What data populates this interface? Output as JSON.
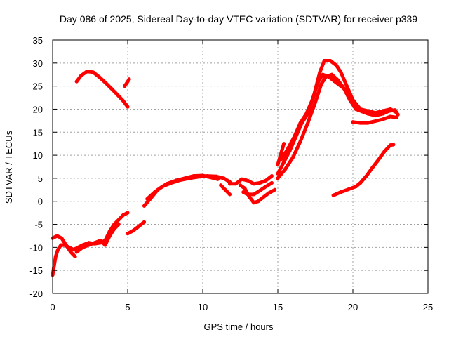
{
  "chart_data": {
    "type": "scatter",
    "title": "Day 086 of 2025, Sidereal Day-to-day VTEC variation (SDTVAR) for receiver p339",
    "xlabel": "GPS time / hours",
    "ylabel": "SDTVAR / TECUs",
    "xlim": [
      0,
      25
    ],
    "ylim": [
      -20,
      35
    ],
    "xticks": [
      "0",
      "5",
      "10",
      "15",
      "20",
      "25"
    ],
    "yticks": [
      "-20",
      "-15",
      "-10",
      "-5",
      "0",
      "5",
      "10",
      "15",
      "20",
      "25",
      "30",
      "35"
    ],
    "grid": true,
    "marker_color": "#ff0000",
    "series": [
      {
        "name": "track-1",
        "points": [
          [
            0.0,
            -16
          ],
          [
            0.1,
            -14
          ],
          [
            0.2,
            -12
          ],
          [
            0.35,
            -10.5
          ],
          [
            0.55,
            -9.5
          ],
          [
            0.8,
            -9.5
          ],
          [
            1.1,
            -10
          ],
          [
            1.4,
            -10.5
          ],
          [
            1.7,
            -10
          ],
          [
            2.0,
            -9.5
          ],
          [
            2.4,
            -9
          ],
          [
            2.8,
            -9.2
          ],
          [
            3.2,
            -9
          ],
          [
            3.5,
            -8.5
          ],
          [
            3.8,
            -6.5
          ],
          [
            4.1,
            -5
          ],
          [
            4.4,
            -4
          ],
          [
            4.7,
            -3
          ],
          [
            5.0,
            -2.5
          ]
        ]
      },
      {
        "name": "track-2",
        "points": [
          [
            0.0,
            -8
          ],
          [
            0.3,
            -7.5
          ],
          [
            0.6,
            -8
          ],
          [
            0.9,
            -9.5
          ],
          [
            1.2,
            -11
          ],
          [
            1.5,
            -12
          ]
        ]
      },
      {
        "name": "track-3",
        "points": [
          [
            1.6,
            -11
          ],
          [
            2.0,
            -10
          ],
          [
            2.4,
            -9.5
          ],
          [
            2.8,
            -9
          ],
          [
            3.2,
            -8.5
          ],
          [
            3.5,
            -9.5
          ],
          [
            3.8,
            -7.5
          ],
          [
            4.1,
            -6
          ],
          [
            4.4,
            -5
          ]
        ]
      },
      {
        "name": "track-4",
        "points": [
          [
            1.6,
            26
          ],
          [
            1.9,
            27.3
          ],
          [
            2.3,
            28.2
          ],
          [
            2.7,
            28
          ],
          [
            3.1,
            27
          ],
          [
            3.5,
            25.8
          ],
          [
            3.9,
            24.5
          ],
          [
            4.3,
            23.2
          ],
          [
            4.7,
            21.8
          ],
          [
            5.0,
            20.5
          ]
        ]
      },
      {
        "name": "track-5",
        "points": [
          [
            4.8,
            25
          ],
          [
            4.95,
            25.7
          ],
          [
            5.1,
            26.5
          ]
        ]
      },
      {
        "name": "track-6",
        "points": [
          [
            5.0,
            -7
          ],
          [
            5.3,
            -6.5
          ],
          [
            5.6,
            -5.8
          ],
          [
            5.9,
            -5
          ],
          [
            6.1,
            -4.5
          ]
        ]
      },
      {
        "name": "track-7",
        "points": [
          [
            6.1,
            -1
          ],
          [
            6.5,
            0.5
          ],
          [
            7.0,
            2.5
          ],
          [
            7.6,
            3.8
          ],
          [
            8.2,
            4.5
          ],
          [
            8.8,
            5
          ],
          [
            9.4,
            5.5
          ],
          [
            10.0,
            5.6
          ],
          [
            10.5,
            5.2
          ],
          [
            11.0,
            4.8
          ]
        ]
      },
      {
        "name": "track-8",
        "points": [
          [
            6.3,
            0.5
          ],
          [
            6.8,
            2
          ],
          [
            7.3,
            3.2
          ],
          [
            7.9,
            4
          ],
          [
            8.5,
            4.6
          ],
          [
            9.1,
            5
          ],
          [
            9.7,
            5.3
          ],
          [
            10.3,
            5.5
          ],
          [
            10.9,
            5.4
          ],
          [
            11.4,
            5
          ],
          [
            11.8,
            4.2
          ]
        ]
      },
      {
        "name": "track-9",
        "points": [
          [
            11.2,
            3.5
          ],
          [
            11.5,
            2.5
          ],
          [
            11.8,
            1.5
          ]
        ]
      },
      {
        "name": "track-10",
        "points": [
          [
            11.8,
            3.8
          ],
          [
            12.2,
            3.8
          ],
          [
            12.6,
            4.8
          ],
          [
            13.0,
            4.5
          ],
          [
            13.4,
            3.8
          ],
          [
            13.8,
            4
          ],
          [
            14.2,
            4.5
          ],
          [
            14.6,
            5.5
          ]
        ]
      },
      {
        "name": "track-11",
        "points": [
          [
            12.5,
            3.5
          ],
          [
            12.8,
            2.8
          ],
          [
            13.1,
            1
          ],
          [
            13.4,
            -0.3
          ],
          [
            13.7,
            0
          ],
          [
            14.0,
            0.8
          ],
          [
            14.4,
            1.8
          ],
          [
            14.8,
            2.5
          ]
        ]
      },
      {
        "name": "track-12",
        "points": [
          [
            12.7,
            2
          ],
          [
            13.0,
            1.5
          ],
          [
            13.4,
            1.5
          ],
          [
            13.8,
            2.3
          ],
          [
            14.2,
            3.2
          ],
          [
            14.6,
            4
          ]
        ]
      },
      {
        "name": "track-13",
        "points": [
          [
            15.0,
            5
          ],
          [
            15.5,
            7
          ],
          [
            16.0,
            9.5
          ],
          [
            16.5,
            13
          ],
          [
            17.0,
            17
          ],
          [
            17.5,
            21.5
          ],
          [
            17.9,
            25.5
          ],
          [
            18.2,
            27
          ],
          [
            18.6,
            27.5
          ],
          [
            19.0,
            26.3
          ],
          [
            19.4,
            24.5
          ],
          [
            19.8,
            22
          ],
          [
            20.2,
            20
          ],
          [
            20.6,
            19.5
          ],
          [
            21.0,
            19
          ],
          [
            21.5,
            18.6
          ],
          [
            22.0,
            19
          ],
          [
            22.4,
            19.6
          ],
          [
            22.8,
            19.8
          ],
          [
            23.0,
            18.8
          ]
        ]
      },
      {
        "name": "track-14",
        "points": [
          [
            15.0,
            6
          ],
          [
            15.4,
            8.5
          ],
          [
            15.8,
            11
          ],
          [
            16.2,
            14
          ],
          [
            16.6,
            17
          ],
          [
            17.0,
            19
          ],
          [
            17.4,
            23
          ],
          [
            17.8,
            28
          ],
          [
            18.1,
            30.5
          ],
          [
            18.5,
            30.5
          ],
          [
            18.9,
            29.5
          ],
          [
            19.2,
            28
          ],
          [
            19.6,
            25
          ],
          [
            20.0,
            22
          ],
          [
            20.5,
            20
          ],
          [
            21.0,
            19.6
          ],
          [
            21.5,
            19.2
          ],
          [
            22.0,
            19.6
          ],
          [
            22.5,
            20
          ],
          [
            22.9,
            19.3
          ]
        ]
      },
      {
        "name": "track-15",
        "points": [
          [
            15.2,
            9
          ],
          [
            15.6,
            11
          ],
          [
            16.1,
            14
          ],
          [
            16.5,
            17
          ],
          [
            16.9,
            19
          ],
          [
            17.3,
            22
          ],
          [
            17.7,
            26
          ],
          [
            18.0,
            27.5
          ],
          [
            18.4,
            27
          ],
          [
            18.8,
            26
          ],
          [
            19.2,
            25
          ],
          [
            19.6,
            24
          ]
        ]
      },
      {
        "name": "track-16",
        "points": [
          [
            15.0,
            8
          ],
          [
            15.4,
            12.5
          ]
        ]
      },
      {
        "name": "track-17",
        "points": [
          [
            20.0,
            17.2
          ],
          [
            20.5,
            17
          ],
          [
            21.0,
            17
          ],
          [
            21.5,
            17.4
          ],
          [
            22.0,
            17.8
          ],
          [
            22.5,
            18.4
          ],
          [
            22.9,
            18.2
          ]
        ]
      },
      {
        "name": "track-18",
        "points": [
          [
            18.7,
            1.3
          ],
          [
            19.2,
            2
          ],
          [
            19.7,
            2.6
          ],
          [
            20.2,
            3.2
          ],
          [
            20.5,
            4
          ],
          [
            20.9,
            5.5
          ],
          [
            21.3,
            7.3
          ],
          [
            21.7,
            9
          ],
          [
            22.1,
            10.8
          ],
          [
            22.5,
            12.2
          ],
          [
            22.7,
            12.3
          ]
        ]
      }
    ]
  }
}
